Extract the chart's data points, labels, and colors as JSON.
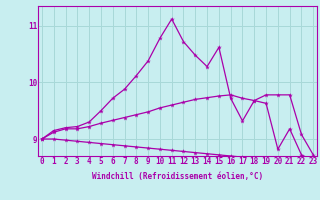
{
  "xlabel": "Windchill (Refroidissement éolien,°C)",
  "x_ticks": [
    0,
    1,
    2,
    3,
    4,
    5,
    6,
    7,
    8,
    9,
    10,
    11,
    12,
    13,
    14,
    15,
    16,
    17,
    18,
    19,
    20,
    21,
    22,
    23
  ],
  "y_ticks": [
    9,
    10,
    11
  ],
  "ylim": [
    8.7,
    11.35
  ],
  "xlim": [
    -0.3,
    23.3
  ],
  "background_color": "#c8eef0",
  "grid_color": "#a8d8d8",
  "line_color": "#aa00aa",
  "line1_x": [
    0,
    1,
    2,
    3,
    4,
    5,
    6,
    7,
    8,
    9,
    10,
    11,
    12,
    13,
    14,
    15,
    16,
    17,
    18,
    19,
    20,
    21,
    22,
    23
  ],
  "line1_y": [
    9.0,
    9.15,
    9.2,
    9.22,
    9.3,
    9.5,
    9.72,
    9.88,
    10.12,
    10.38,
    10.78,
    11.12,
    10.72,
    10.48,
    10.28,
    10.62,
    9.72,
    9.32,
    9.68,
    9.78,
    9.78,
    9.78,
    9.08,
    8.72
  ],
  "line2_x": [
    0,
    1,
    2,
    3,
    4,
    5,
    6,
    7,
    8,
    9,
    10,
    11,
    12,
    13,
    14,
    15,
    16,
    17,
    18,
    19,
    20,
    21,
    22,
    23
  ],
  "line2_y": [
    9.0,
    9.12,
    9.18,
    9.18,
    9.22,
    9.28,
    9.33,
    9.38,
    9.43,
    9.48,
    9.55,
    9.6,
    9.65,
    9.7,
    9.73,
    9.76,
    9.78,
    9.72,
    9.68,
    9.63,
    8.82,
    9.18,
    8.72,
    8.62
  ],
  "line3_x": [
    0,
    1,
    2,
    3,
    4,
    5,
    6,
    7,
    8,
    9,
    10,
    11,
    12,
    13,
    14,
    15,
    16,
    17,
    18,
    19,
    20,
    21,
    22,
    23
  ],
  "line3_y": [
    9.0,
    9.0,
    8.98,
    8.96,
    8.94,
    8.92,
    8.9,
    8.88,
    8.86,
    8.84,
    8.82,
    8.8,
    8.78,
    8.76,
    8.74,
    8.72,
    8.7,
    8.68,
    8.66,
    8.64,
    8.62,
    8.6,
    8.58,
    8.55
  ]
}
